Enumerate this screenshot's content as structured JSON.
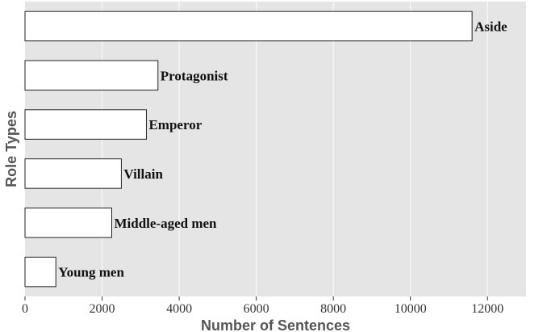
{
  "chart_data": {
    "type": "bar",
    "orientation": "horizontal",
    "title": "",
    "xlabel": "Number of Sentences",
    "ylabel": "Role Types",
    "categories": [
      "Aside",
      "Protagonist",
      "Emperor",
      "Villain",
      "Middle-aged men",
      "Young men"
    ],
    "values": [
      11600,
      3450,
      3150,
      2500,
      2250,
      800
    ],
    "xlim": [
      0,
      13000
    ],
    "xticks": [
      0,
      2000,
      4000,
      6000,
      8000,
      10000,
      12000
    ],
    "xtick_labels": [
      "0",
      "2000",
      "4000",
      "6000",
      "8000",
      "10000",
      "12000"
    ],
    "grid": true,
    "legend": false,
    "colors": {
      "panel_background": "#e5e5e5",
      "bar_fill": "#ffffff",
      "bar_stroke": "#222222",
      "grid": "#f7f7f7"
    }
  }
}
